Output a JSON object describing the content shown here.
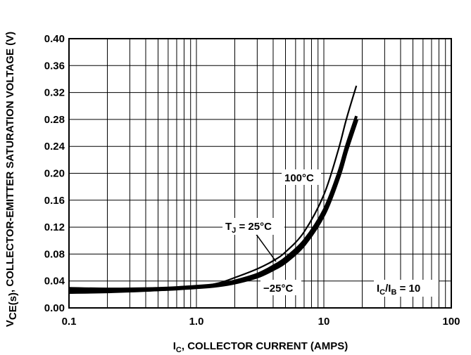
{
  "chart_data": {
    "type": "line",
    "x_scale": "log",
    "xlim": [
      0.1,
      100
    ],
    "ylim": [
      0,
      0.4
    ],
    "xlabel": {
      "symbol": "I",
      "subscript": "C",
      "text": ", COLLECTOR CURRENT (AMPS)"
    },
    "ylabel": {
      "symbol": "V",
      "subscript": "CE(s)",
      "text": ", COLLECTOR-EMITTER SATURATION VOLTAGE (V)"
    },
    "x_ticks": [
      "0.1",
      "1.0",
      "10",
      "100"
    ],
    "y_ticks": [
      "0.00",
      "0.04",
      "0.08",
      "0.12",
      "0.16",
      "0.20",
      "0.24",
      "0.28",
      "0.32",
      "0.36",
      "0.40"
    ],
    "grid": true,
    "series": [
      {
        "name": "100°C",
        "x": [
          0.1,
          0.2,
          0.5,
          1.0,
          1.5,
          2,
          3,
          4,
          5,
          7,
          10,
          13,
          15,
          18
        ],
        "y": [
          0.022,
          0.023,
          0.026,
          0.031,
          0.037,
          0.045,
          0.058,
          0.07,
          0.083,
          0.113,
          0.168,
          0.235,
          0.28,
          0.33
        ],
        "line_weight": "thin"
      },
      {
        "name": "T_J = 25°C",
        "x": [
          0.1,
          0.2,
          0.5,
          1.0,
          1.5,
          2,
          3,
          4,
          5,
          7,
          10,
          13,
          15,
          18
        ],
        "y": [
          0.025,
          0.025,
          0.027,
          0.031,
          0.035,
          0.04,
          0.05,
          0.062,
          0.074,
          0.1,
          0.145,
          0.2,
          0.24,
          0.285
        ],
        "line_weight": "medium"
      },
      {
        "name": "−25°C",
        "x": [
          0.1,
          0.2,
          0.5,
          1.0,
          1.5,
          2,
          3,
          4,
          5,
          7,
          10,
          13,
          15,
          18
        ],
        "y": [
          0.028,
          0.027,
          0.028,
          0.031,
          0.034,
          0.038,
          0.047,
          0.058,
          0.069,
          0.095,
          0.14,
          0.195,
          0.235,
          0.28
        ],
        "line_weight": "thick"
      }
    ],
    "annotations": {
      "t100": "100°C",
      "t25_prefix": "T",
      "t25_sub": "J",
      "t25_suffix": " = 25°C",
      "tm25": "−25°C",
      "ratio": {
        "a": "I",
        "a_sub": "C",
        "slash": "/I",
        "b_sub": "B",
        "suffix": " = 10"
      }
    }
  }
}
